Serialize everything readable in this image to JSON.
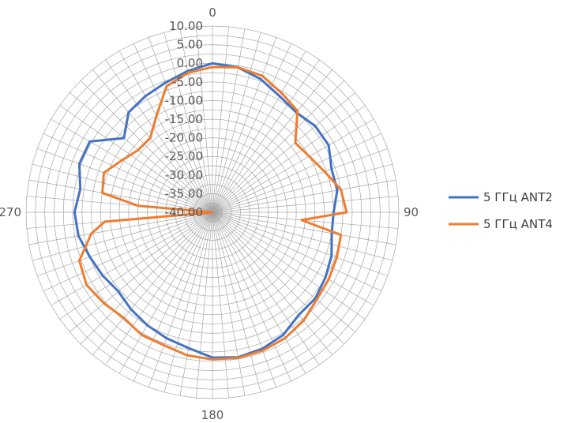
{
  "chart_data": {
    "type": "radar",
    "title": "",
    "axis": {
      "r_min": -40,
      "r_max": 10,
      "r_step": 2.5,
      "tick_labels": [
        "10.00",
        "5.00",
        "0.00",
        "-5.00",
        "-10.00",
        "-15.00",
        "-20.00",
        "-25.00",
        "-30.00",
        "-35.00",
        "-40.00"
      ],
      "angle_step_deg": 5,
      "angle_labels": [
        {
          "deg": 0,
          "label": "0"
        },
        {
          "deg": 90,
          "label": "90"
        },
        {
          "deg": 180,
          "label": "180"
        },
        {
          "deg": 270,
          "label": "270"
        }
      ]
    },
    "legend_position": "right",
    "series": [
      {
        "name": "5 ГГц ANT2",
        "color": "#4472C4",
        "points": [
          [
            0,
            0
          ],
          [
            10,
            -0.5
          ],
          [
            20,
            -2
          ],
          [
            30,
            -4
          ],
          [
            40,
            -5
          ],
          [
            50,
            -4
          ],
          [
            60,
            -4
          ],
          [
            70,
            -6
          ],
          [
            80,
            -6
          ],
          [
            90,
            -7.5
          ],
          [
            100,
            -7.5
          ],
          [
            110,
            -6
          ],
          [
            120,
            -5
          ],
          [
            130,
            -4
          ],
          [
            140,
            -4
          ],
          [
            150,
            -2
          ],
          [
            160,
            -1
          ],
          [
            170,
            -0.5
          ],
          [
            180,
            -1
          ],
          [
            190,
            -3
          ],
          [
            200,
            -4
          ],
          [
            210,
            -5
          ],
          [
            220,
            -6
          ],
          [
            230,
            -7
          ],
          [
            240,
            -6
          ],
          [
            250,
            -5
          ],
          [
            260,
            -3.5
          ],
          [
            270,
            -3
          ],
          [
            280,
            -4
          ],
          [
            290,
            -2
          ],
          [
            300,
            -2
          ],
          [
            310,
            -9
          ],
          [
            320,
            -5
          ],
          [
            330,
            -4
          ],
          [
            340,
            -3
          ],
          [
            350,
            -1.5
          ]
        ]
      },
      {
        "name": "5 ГГц ANT4",
        "color": "#ED7D31",
        "points": [
          [
            0,
            -1
          ],
          [
            10,
            -0.5
          ],
          [
            20,
            -1
          ],
          [
            30,
            -3
          ],
          [
            40,
            -4.5
          ],
          [
            50,
            -11
          ],
          [
            60,
            -10
          ],
          [
            70,
            -8
          ],
          [
            80,
            -5
          ],
          [
            90,
            -4
          ],
          [
            95,
            -16
          ],
          [
            100,
            -5
          ],
          [
            110,
            -4.5
          ],
          [
            120,
            -4
          ],
          [
            130,
            -3.5
          ],
          [
            140,
            -2
          ],
          [
            150,
            -1
          ],
          [
            160,
            -0.5
          ],
          [
            170,
            -0.3
          ],
          [
            180,
            -0.5
          ],
          [
            190,
            -1
          ],
          [
            200,
            -2
          ],
          [
            210,
            -2
          ],
          [
            220,
            -3
          ],
          [
            230,
            -2
          ],
          [
            240,
            -1
          ],
          [
            250,
            -2
          ],
          [
            260,
            -7
          ],
          [
            265,
            -11
          ],
          [
            270,
            -40
          ],
          [
            275,
            -20
          ],
          [
            280,
            -10
          ],
          [
            290,
            -9
          ],
          [
            300,
            -12
          ],
          [
            310,
            -14
          ],
          [
            320,
            -14
          ],
          [
            330,
            -10
          ],
          [
            340,
            -4
          ],
          [
            350,
            -2
          ]
        ]
      }
    ]
  }
}
